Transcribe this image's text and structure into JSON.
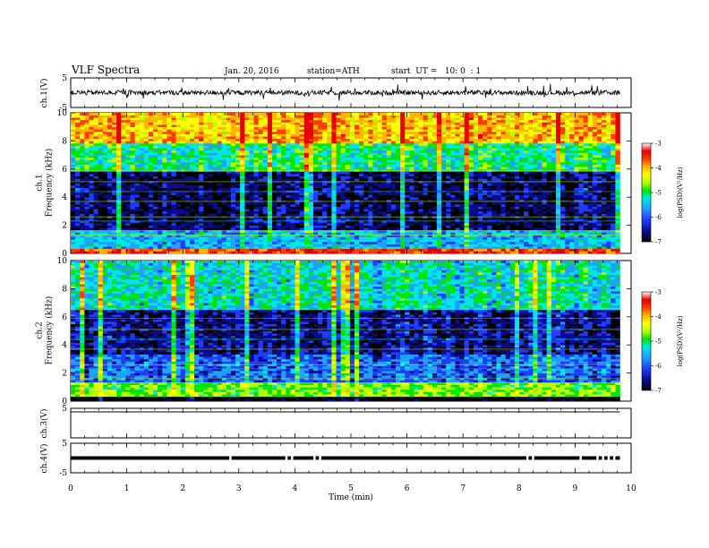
{
  "header": {
    "title": "VLF Spectra",
    "date": "Jan. 20, 2016",
    "station": "station=ATH",
    "start_ut": "start  UT =   10: 0  : 1"
  },
  "chart_data": [
    {
      "id": "ch1-waveform",
      "type": "line",
      "ylabel": "ch.1(V)",
      "ylim": [
        -5,
        5
      ],
      "yticks": [
        "-5",
        "5"
      ],
      "xlim": [
        0,
        10
      ],
      "series_extent_min": 9.8,
      "baseline": 0,
      "noise_amplitude": 0.8,
      "spike_amplitude": 2.5
    },
    {
      "id": "ch1-spectrogram",
      "type": "heatmap",
      "ylabel": "ch.1\nFrequency (kHz)",
      "ylim": [
        0,
        10
      ],
      "yticks": [
        "0",
        "2",
        "4",
        "6",
        "8",
        "10"
      ],
      "xlim": [
        0,
        10
      ],
      "data_extent_min": 9.8,
      "colorbar": {
        "label": "log(PSD)(V²/Hz)",
        "range": [
          -7,
          -3
        ],
        "ticks": [
          "-3",
          "-4",
          "-5",
          "-6",
          "-7"
        ]
      },
      "bands_khz": [
        {
          "from": 0,
          "to": 0.4,
          "level": -3.5
        },
        {
          "from": 0.4,
          "to": 1.6,
          "level": -5.6
        },
        {
          "from": 1.6,
          "to": 5.8,
          "level": -6.6
        },
        {
          "from": 5.8,
          "to": 7.8,
          "level": -5.2
        },
        {
          "from": 7.8,
          "to": 10,
          "level": -4.0
        }
      ]
    },
    {
      "id": "ch2-spectrogram",
      "type": "heatmap",
      "ylabel": "ch.2\nFrequency (kHz)",
      "ylim": [
        0,
        10
      ],
      "yticks": [
        "0",
        "2",
        "4",
        "6",
        "8",
        "10"
      ],
      "xlim": [
        0,
        10
      ],
      "data_extent_min": 9.8,
      "colorbar": {
        "label": "log(PSD)(V²/Hz)",
        "range": [
          -7,
          -3
        ],
        "ticks": [
          "-3",
          "-4",
          "-5",
          "-6",
          "-7"
        ]
      },
      "bands_khz": [
        {
          "from": 0,
          "to": 0.3,
          "level": -7.0
        },
        {
          "from": 0.3,
          "to": 1.4,
          "level": -4.8
        },
        {
          "from": 1.4,
          "to": 3.4,
          "level": -6.0
        },
        {
          "from": 3.4,
          "to": 6.5,
          "level": -6.5
        },
        {
          "from": 6.5,
          "to": 10,
          "level": -5.4
        }
      ]
    },
    {
      "id": "ch3-waveform",
      "type": "line",
      "ylabel": "ch.3(V)",
      "ylim": [
        -5,
        5
      ],
      "yticks": [
        "5"
      ],
      "xlim": [
        0,
        10
      ],
      "series_extent_min": 9.8,
      "value": 5
    },
    {
      "id": "ch4-waveform",
      "type": "line",
      "ylabel": "ch.4(V)",
      "ylim": [
        -5,
        5
      ],
      "yticks": [
        "-5",
        "5"
      ],
      "xlim": [
        0,
        10
      ],
      "series_extent_min": 9.8,
      "value": 0,
      "gaps_min": [
        2.85,
        3.85,
        3.95,
        4.35,
        4.45,
        8.15,
        8.25,
        9.1,
        9.4,
        9.5,
        9.6,
        9.7
      ]
    }
  ],
  "xaxis": {
    "label": "Time (min)",
    "ticks": [
      "0",
      "1",
      "2",
      "3",
      "4",
      "5",
      "6",
      "7",
      "8",
      "9",
      "10"
    ],
    "range": [
      0,
      10
    ]
  },
  "colors": {
    "colormap": [
      "#000000",
      "#0a0a8c",
      "#1e3cff",
      "#1ea0ff",
      "#00e6e6",
      "#00e600",
      "#b4ff00",
      "#ffff00",
      "#ffb400",
      "#ff3c00",
      "#e60000",
      "#ffffff"
    ]
  }
}
